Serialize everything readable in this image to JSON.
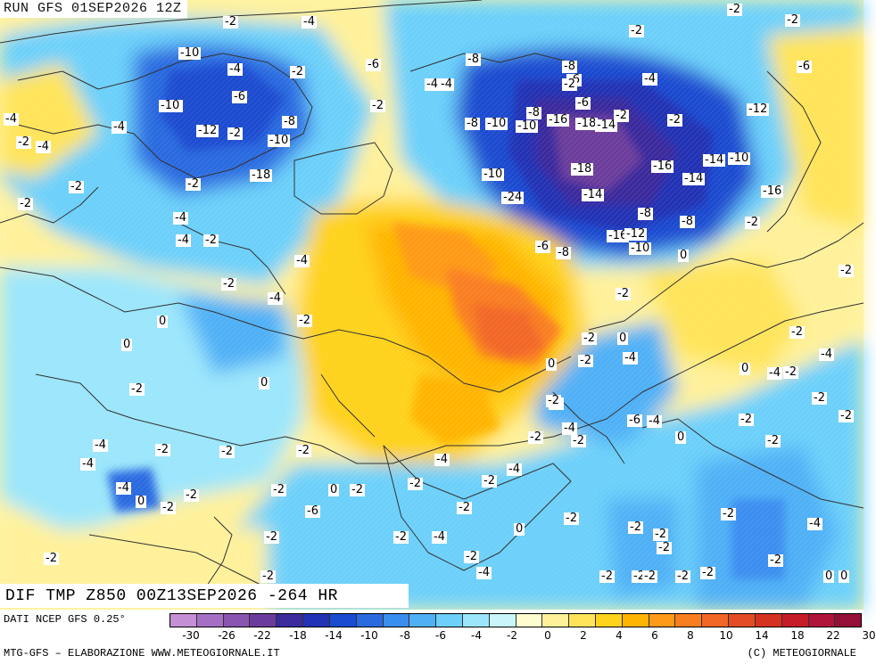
{
  "header": {
    "run_label": "RUN GFS 01SEP2026 12Z",
    "product_label": "DIF TMP Z850 00Z13SEP2026 -264 HR"
  },
  "footer": {
    "source": "DATI NCEP GFS 0.25°",
    "credit_left": "MTG-GFS – ELABORAZIONE WWW.METEOGIORNALE.IT",
    "credit_right": "(C) METEOGIORNALE"
  },
  "legend": {
    "tick_labels": [
      "-30",
      "-26",
      "-22",
      "-18",
      "-14",
      "-10",
      "-8",
      "-6",
      "-4",
      "-2",
      "0",
      "2",
      "4",
      "6",
      "8",
      "10",
      "14",
      "18",
      "22",
      "30"
    ],
    "colors": [
      "#c58fd6",
      "#a570c4",
      "#8a55b0",
      "#6c3c9c",
      "#3b2b9c",
      "#2232b4",
      "#1a4bd0",
      "#2a6ae0",
      "#3a8ef0",
      "#4fb0f6",
      "#6cd0fa",
      "#9be6fb",
      "#c8f6fb",
      "#fdfdd0",
      "#fff19a",
      "#ffe45a",
      "#ffd21c",
      "#ffb400",
      "#ff9a18",
      "#f97e20",
      "#f26626",
      "#e44c26",
      "#d63222",
      "#c61c28",
      "#b0143a",
      "#941038"
    ]
  },
  "map": {
    "contour_labels": [
      "-2",
      "-4",
      "-2",
      "-2",
      "-10",
      "-4",
      "-2",
      "-6",
      "-4",
      "-4",
      "-6",
      "-2",
      "-4",
      "-8",
      "-6",
      "-2",
      "-2",
      "-4",
      "-4",
      "-10",
      "-12",
      "-8",
      "-10",
      "-2",
      "-8",
      "-8",
      "-6",
      "-2",
      "-12",
      "-16",
      "-18",
      "-14",
      "-2",
      "-10",
      "-8",
      "-10",
      "-2",
      "-2",
      "-2",
      "-18",
      "-16",
      "-14",
      "-14",
      "-18",
      "-10",
      "-8",
      "-6",
      "-10",
      "-14",
      "-16",
      "-4",
      "-4",
      "-2",
      "-2",
      "-24",
      "-8",
      "-16",
      "-12",
      "-10",
      "-6",
      "-8",
      "0",
      "-4",
      "-2",
      "-4",
      "-2",
      "0",
      "-2",
      "0",
      "0",
      "-2",
      "0",
      "-2",
      "0",
      "-4",
      "-2",
      "-2",
      "-4",
      "-6",
      "-4",
      "-2",
      "-4",
      "-2",
      "-2",
      "-4",
      "-2",
      "0",
      "-2",
      "-2",
      "-2",
      "-2",
      "-4",
      "-2",
      "-2",
      "-4",
      "0",
      "-2",
      "0",
      "-2",
      "-2",
      "-2",
      "-4",
      "-4",
      "-6",
      "0",
      "-2",
      "-4",
      "-2",
      "-2",
      "-2",
      "-2",
      "-4",
      "-2",
      "0",
      "-2",
      "-2",
      "-2",
      "-2",
      "-2",
      "-2",
      "-4",
      "-2",
      "-4",
      "-2",
      "-2",
      "-2",
      "-2",
      "0",
      "-2",
      "-2",
      "0",
      "-4",
      "-4",
      "-2",
      "-2",
      "-2",
      "-2"
    ]
  }
}
